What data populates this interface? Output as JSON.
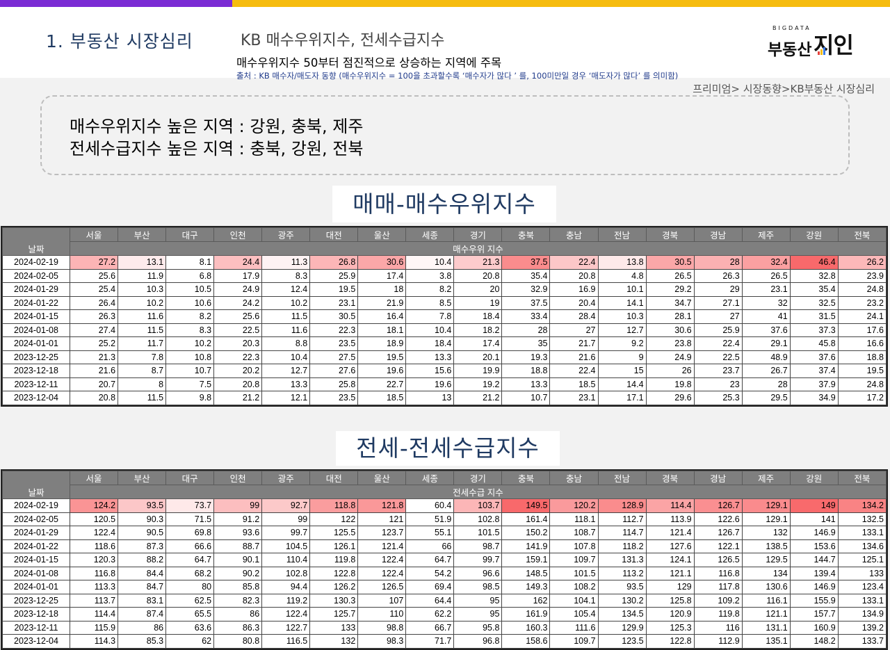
{
  "header": {
    "section_title": "1. 부동산 시장심리",
    "subtitle": "KB 매수우위지수, 전세수급지수",
    "headline": "매수우위지수 50부터 점진적으로 상승하는 지역에 주목",
    "source": "출처 : KB 매수자/매도자 동향 (매수우위지수 = 100을 초과할수록 ‘매수자가 많다 ’ 를, 100미만일 경우 ‘매도자가 많다’ 를 의미함)"
  },
  "logo": {
    "small": "BIGDATA",
    "main": "부동산",
    "accent": "지인"
  },
  "breadcrumb": "프리미엄> 시장동향>KB부동산 시장심리",
  "summary": {
    "line1": "매수우위지수 높은 지역 : 강원, 충북, 제주",
    "line2": "전세수급지수 높은 지역 : 충북, 강원, 전북"
  },
  "colors": {
    "purple": "#7b2cd4",
    "yellow": "#f6bc0f",
    "navy": "#1f3a62",
    "heat_high": "#f8696b",
    "header_gray": "#7f7f7f"
  },
  "regions": [
    "서울",
    "부산",
    "대구",
    "인천",
    "광주",
    "대전",
    "울산",
    "세종",
    "경기",
    "충북",
    "충남",
    "전남",
    "경북",
    "경남",
    "제주",
    "강원",
    "전북"
  ],
  "buy": {
    "heading": "매매-매수우위지수",
    "date_label": "날짜",
    "subheader": "매수우위 지수",
    "rows": [
      {
        "date": "2024-02-19",
        "values": [
          "27.2",
          "13.1",
          "8.1",
          "24.4",
          "11.3",
          "26.8",
          "30.6",
          "10.4",
          "21.3",
          "37.5",
          "22.4",
          "13.8",
          "30.5",
          "28",
          "32.4",
          "46.4",
          "26.2"
        ]
      },
      {
        "date": "2024-02-05",
        "values": [
          "25.6",
          "11.9",
          "6.8",
          "17.9",
          "8.3",
          "25.9",
          "17.4",
          "3.8",
          "20.8",
          "35.4",
          "20.8",
          "4.8",
          "26.5",
          "26.3",
          "26.5",
          "32.8",
          "23.9"
        ]
      },
      {
        "date": "2024-01-29",
        "values": [
          "25.4",
          "10.3",
          "10.5",
          "24.9",
          "12.4",
          "19.5",
          "18",
          "8.2",
          "20",
          "32.9",
          "16.9",
          "10.1",
          "29.2",
          "29",
          "23.1",
          "35.4",
          "24.8"
        ]
      },
      {
        "date": "2024-01-22",
        "values": [
          "26.4",
          "10.2",
          "10.6",
          "24.2",
          "10.2",
          "23.1",
          "21.9",
          "8.5",
          "19",
          "37.5",
          "20.4",
          "14.1",
          "34.7",
          "27.1",
          "32",
          "32.5",
          "23.2"
        ]
      },
      {
        "date": "2024-01-15",
        "values": [
          "26.3",
          "11.6",
          "8.2",
          "25.6",
          "11.5",
          "30.5",
          "16.4",
          "7.8",
          "18.4",
          "33.4",
          "28.4",
          "10.3",
          "28.1",
          "27",
          "41",
          "31.5",
          "24.1"
        ]
      },
      {
        "date": "2024-01-08",
        "values": [
          "27.4",
          "11.5",
          "8.3",
          "22.5",
          "11.6",
          "22.3",
          "18.1",
          "10.4",
          "18.2",
          "28",
          "27",
          "12.7",
          "30.6",
          "25.9",
          "37.6",
          "37.3",
          "17.6"
        ]
      },
      {
        "date": "2024-01-01",
        "values": [
          "25.2",
          "11.7",
          "10.2",
          "20.3",
          "8.8",
          "23.5",
          "18.9",
          "18.4",
          "17.4",
          "35",
          "21.7",
          "9.2",
          "23.8",
          "22.4",
          "29.1",
          "45.8",
          "16.6"
        ]
      },
      {
        "date": "2023-12-25",
        "values": [
          "21.3",
          "7.8",
          "10.8",
          "22.3",
          "10.4",
          "27.5",
          "19.5",
          "13.3",
          "20.1",
          "19.3",
          "21.6",
          "9",
          "24.9",
          "22.5",
          "48.9",
          "37.6",
          "18.8"
        ]
      },
      {
        "date": "2023-12-18",
        "values": [
          "21.6",
          "8.7",
          "10.7",
          "20.2",
          "12.7",
          "27.6",
          "19.6",
          "15.6",
          "19.9",
          "18.8",
          "22.4",
          "15",
          "26",
          "23.7",
          "26.7",
          "37.4",
          "19.5"
        ]
      },
      {
        "date": "2023-12-11",
        "values": [
          "20.7",
          "8",
          "7.5",
          "20.8",
          "13.3",
          "25.8",
          "22.7",
          "19.6",
          "19.2",
          "13.3",
          "18.5",
          "14.4",
          "19.8",
          "23",
          "28",
          "37.9",
          "24.8"
        ]
      },
      {
        "date": "2023-12-04",
        "values": [
          "20.8",
          "11.5",
          "9.8",
          "21.2",
          "12.1",
          "23.5",
          "18.5",
          "13",
          "21.2",
          "10.7",
          "23.1",
          "17.1",
          "29.6",
          "25.3",
          "29.5",
          "34.9",
          "17.2"
        ]
      }
    ]
  },
  "jeonse": {
    "heading": "전세-전세수급지수",
    "date_label": "날짜",
    "subheader": "전세수급 지수",
    "rows": [
      {
        "date": "2024-02-19",
        "values": [
          "124.2",
          "93.5",
          "73.7",
          "99",
          "92.7",
          "118.8",
          "121.8",
          "60.4",
          "103.7",
          "149.5",
          "120.2",
          "128.9",
          "114.4",
          "126.7",
          "129.1",
          "149",
          "134.2"
        ]
      },
      {
        "date": "2024-02-05",
        "values": [
          "120.5",
          "90.3",
          "71.5",
          "91.2",
          "99",
          "122",
          "121",
          "51.9",
          "102.8",
          "161.4",
          "118.1",
          "112.7",
          "113.9",
          "122.6",
          "129.1",
          "141",
          "132.5"
        ]
      },
      {
        "date": "2024-01-29",
        "values": [
          "122.4",
          "90.5",
          "69.8",
          "93.6",
          "99.7",
          "125.5",
          "123.7",
          "55.1",
          "101.5",
          "150.2",
          "108.7",
          "114.7",
          "121.4",
          "126.7",
          "132",
          "146.9",
          "133.1"
        ]
      },
      {
        "date": "2024-01-22",
        "values": [
          "118.6",
          "87.3",
          "66.6",
          "88.7",
          "104.5",
          "126.1",
          "121.4",
          "66",
          "98.7",
          "141.9",
          "107.8",
          "118.2",
          "127.6",
          "122.1",
          "138.5",
          "153.6",
          "134.6"
        ]
      },
      {
        "date": "2024-01-15",
        "values": [
          "120.3",
          "88.2",
          "64.7",
          "90.1",
          "110.4",
          "119.8",
          "122.4",
          "64.7",
          "99.7",
          "159.1",
          "109.7",
          "131.3",
          "124.1",
          "126.5",
          "129.5",
          "144.7",
          "125.1"
        ]
      },
      {
        "date": "2024-01-08",
        "values": [
          "116.8",
          "84.4",
          "68.2",
          "90.2",
          "102.8",
          "122.8",
          "122.4",
          "54.2",
          "96.6",
          "148.5",
          "101.5",
          "113.2",
          "121.1",
          "116.8",
          "134",
          "139.4",
          "133"
        ]
      },
      {
        "date": "2024-01-01",
        "values": [
          "113.3",
          "84.7",
          "80",
          "85.8",
          "94.4",
          "126.2",
          "126.5",
          "69.4",
          "98.5",
          "149.3",
          "108.2",
          "93.5",
          "129",
          "117.8",
          "130.6",
          "146.9",
          "123.4"
        ]
      },
      {
        "date": "2023-12-25",
        "values": [
          "113.7",
          "83.1",
          "62.5",
          "82.3",
          "119.2",
          "130.3",
          "107",
          "64.4",
          "95",
          "162",
          "104.1",
          "130.2",
          "125.8",
          "109.2",
          "116.1",
          "155.9",
          "133.1"
        ]
      },
      {
        "date": "2023-12-18",
        "values": [
          "114.4",
          "87.4",
          "65.5",
          "86",
          "122.4",
          "125.7",
          "110",
          "62.2",
          "95",
          "161.9",
          "105.4",
          "134.5",
          "120.9",
          "119.8",
          "121.1",
          "157.7",
          "134.9"
        ]
      },
      {
        "date": "2023-12-11",
        "values": [
          "115.9",
          "86",
          "63.6",
          "86.3",
          "122.7",
          "133",
          "98.8",
          "66.7",
          "95.8",
          "160.3",
          "111.6",
          "129.9",
          "125.3",
          "116",
          "131.1",
          "160.9",
          "139.2"
        ]
      },
      {
        "date": "2023-12-04",
        "values": [
          "114.3",
          "85.3",
          "62",
          "80.8",
          "116.5",
          "132",
          "98.3",
          "71.7",
          "96.8",
          "158.6",
          "109.7",
          "123.5",
          "122.8",
          "112.9",
          "135.1",
          "148.2",
          "133.7"
        ]
      }
    ]
  }
}
